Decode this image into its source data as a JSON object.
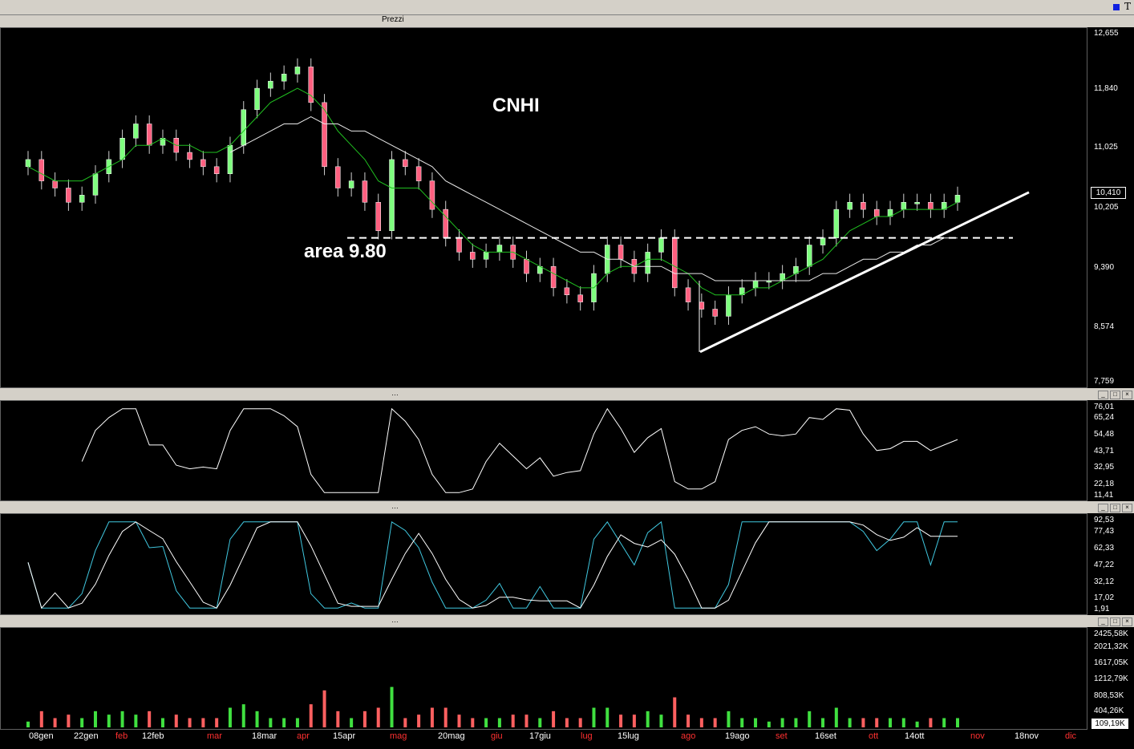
{
  "window": {
    "panel_title": "Prezzi",
    "corner_glyph": "T"
  },
  "annotations": {
    "ticker": "CNHI",
    "level_label": "area 9.80"
  },
  "price_axis": {
    "ticks": [
      "12,655",
      "11,840",
      "11,025",
      "10,205",
      "9,390",
      "8,574",
      "7,759"
    ],
    "last_price": "10,410"
  },
  "rsi_axis": {
    "ticks": [
      "76,01",
      "65,24",
      "54,48",
      "43,71",
      "32,95",
      "22,18",
      "11,41"
    ]
  },
  "stoch_axis": {
    "ticks": [
      "92,53",
      "77,43",
      "62,33",
      "47,22",
      "32,12",
      "17,02",
      "1,91"
    ]
  },
  "volume_axis": {
    "ticks": [
      "2425,58K",
      "2021,32K",
      "1617,05K",
      "1212,79K",
      "808,53K",
      "404,26K"
    ],
    "last_volume": "109,19K"
  },
  "x_axis": {
    "labels": [
      {
        "text": "08gen",
        "color": "#ffffff"
      },
      {
        "text": "22gen",
        "color": "#ffffff"
      },
      {
        "text": "feb",
        "color": "#ff3030"
      },
      {
        "text": "12feb",
        "color": "#ffffff"
      },
      {
        "text": "mar",
        "color": "#ff3030"
      },
      {
        "text": "18mar",
        "color": "#ffffff"
      },
      {
        "text": "apr",
        "color": "#ff3030"
      },
      {
        "text": "15apr",
        "color": "#ffffff"
      },
      {
        "text": "mag",
        "color": "#ff3030"
      },
      {
        "text": "20mag",
        "color": "#ffffff"
      },
      {
        "text": "giu",
        "color": "#ff3030"
      },
      {
        "text": "17giu",
        "color": "#ffffff"
      },
      {
        "text": "lug",
        "color": "#ff3030"
      },
      {
        "text": "15lug",
        "color": "#ffffff"
      },
      {
        "text": "ago",
        "color": "#ff3030"
      },
      {
        "text": "19ago",
        "color": "#ffffff"
      },
      {
        "text": "set",
        "color": "#ff3030"
      },
      {
        "text": "16set",
        "color": "#ffffff"
      },
      {
        "text": "ott",
        "color": "#ff3030"
      },
      {
        "text": "14ott",
        "color": "#ffffff"
      },
      {
        "text": "nov",
        "color": "#ff3030"
      },
      {
        "text": "18nov",
        "color": "#ffffff"
      },
      {
        "text": "dic",
        "color": "#ff3030"
      }
    ]
  },
  "chart_data": {
    "type": "line",
    "title": "CNHI",
    "ylim": [
      7.759,
      12.655
    ],
    "support_level": 9.8,
    "series": [
      {
        "values": [
          10.9,
          10.6,
          10.5,
          10.3,
          10.4,
          10.7,
          10.9,
          11.2,
          11.4,
          11.1,
          11.2,
          11.0,
          10.9,
          10.8,
          10.7,
          11.1,
          11.6,
          11.9,
          12.0,
          12.1,
          12.2,
          11.7,
          10.8,
          10.5,
          10.6,
          10.3,
          9.9,
          10.9,
          10.8,
          10.6,
          10.2,
          9.8,
          9.6,
          9.5,
          9.6,
          9.7,
          9.5,
          9.3,
          9.4,
          9.1,
          9.0,
          8.9,
          9.3,
          9.7,
          9.5,
          9.3,
          9.6,
          9.8,
          9.1,
          8.9,
          8.8,
          8.7,
          9.0,
          9.1,
          9.2,
          9.2,
          9.3,
          9.4,
          9.7,
          9.8,
          10.2,
          10.3,
          10.2,
          10.1,
          10.2,
          10.3,
          10.3,
          10.2,
          10.3,
          10.4
        ]
      },
      {
        "values": [
          10.8,
          10.7,
          10.6,
          10.6,
          10.6,
          10.7,
          10.8,
          10.9,
          11.1,
          11.1,
          11.2,
          11.1,
          11.1,
          11.0,
          11.0,
          11.1,
          11.3,
          11.5,
          11.7,
          11.8,
          11.9,
          11.8,
          11.6,
          11.3,
          11.1,
          10.9,
          10.6,
          10.5,
          10.5,
          10.5,
          10.3,
          10.1,
          9.9,
          9.7,
          9.6,
          9.6,
          9.6,
          9.5,
          9.4,
          9.3,
          9.2,
          9.1,
          9.1,
          9.3,
          9.4,
          9.4,
          9.5,
          9.5,
          9.4,
          9.3,
          9.1,
          9.0,
          9.0,
          9.0,
          9.1,
          9.1,
          9.2,
          9.3,
          9.4,
          9.5,
          9.7,
          9.9,
          10.0,
          10.1,
          10.1,
          10.2,
          10.2,
          10.2,
          10.2,
          10.3
        ]
      },
      {
        "values": [
          null,
          null,
          null,
          null,
          null,
          null,
          null,
          null,
          null,
          null,
          null,
          null,
          null,
          null,
          null,
          11.0,
          11.1,
          11.2,
          11.3,
          11.4,
          11.4,
          11.5,
          11.4,
          11.4,
          11.3,
          11.3,
          11.2,
          11.1,
          11.0,
          10.9,
          10.8,
          10.6,
          10.5,
          10.4,
          10.3,
          10.2,
          10.1,
          10.0,
          9.9,
          9.8,
          9.7,
          9.6,
          9.6,
          9.5,
          9.5,
          9.4,
          9.4,
          9.4,
          9.3,
          9.3,
          9.3,
          9.2,
          9.2,
          9.2,
          9.2,
          9.2,
          9.2,
          9.2,
          9.2,
          9.3,
          9.3,
          9.4,
          9.5,
          9.5,
          9.6,
          9.6,
          9.7,
          9.7,
          9.8,
          9.8
        ]
      }
    ]
  }
}
